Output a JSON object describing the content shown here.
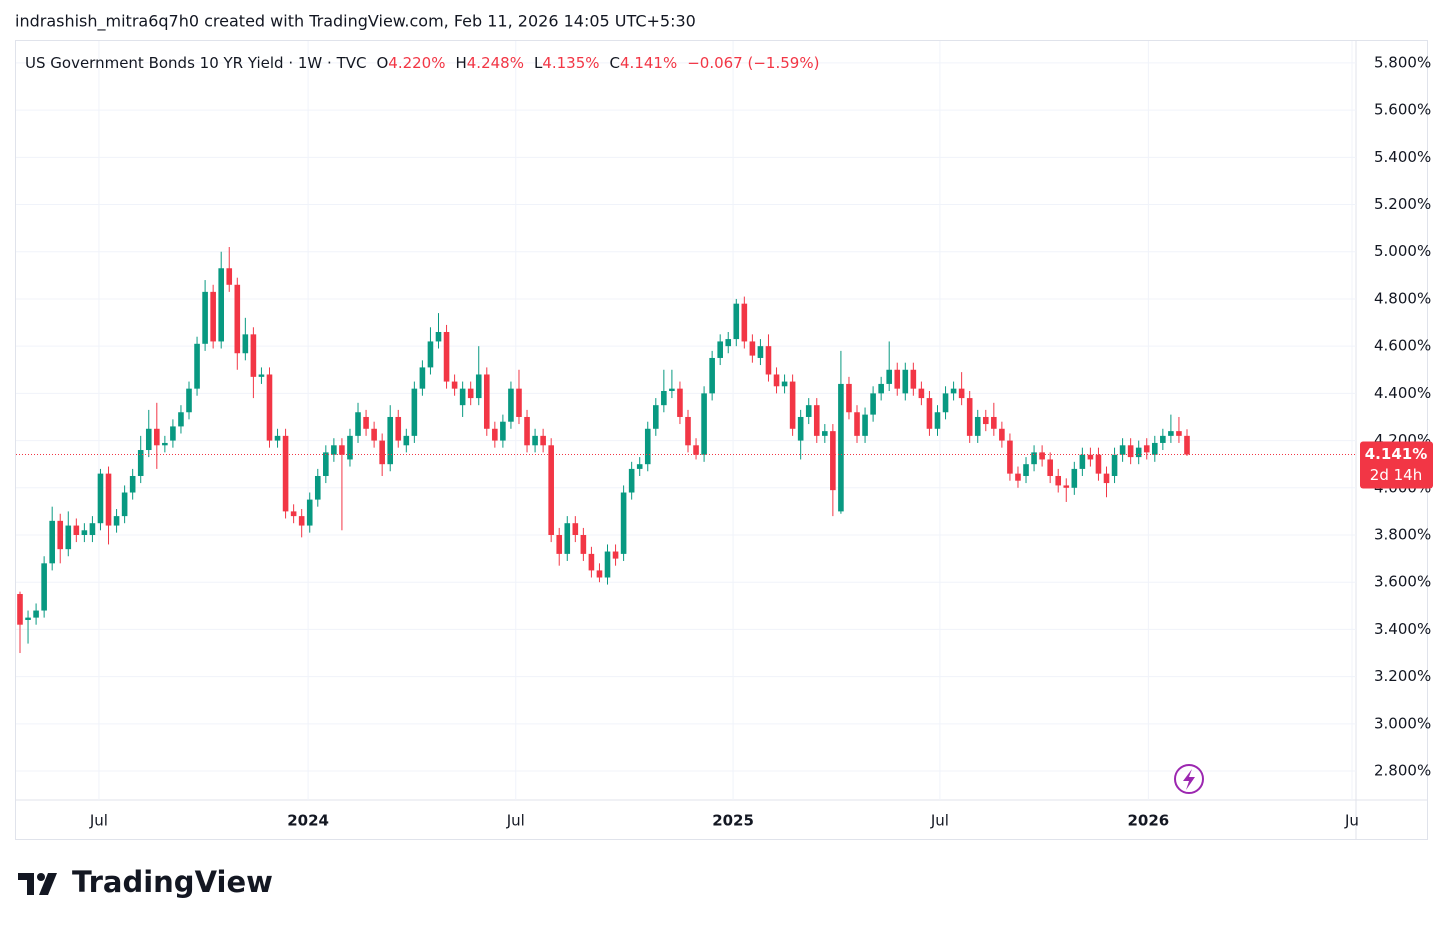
{
  "header": "indrashish_mitra6q7h0 created with TradingView.com, Feb 11, 2026 14:05 UTC+5:30",
  "brand": "TradingView",
  "chart_data": {
    "type": "candlestick",
    "legend": {
      "title": "US Government Bonds 10 YR Yield · 1W · TVC",
      "items": [
        {
          "key": "O",
          "value": "4.220%"
        },
        {
          "key": "H",
          "value": "4.248%"
        },
        {
          "key": "L",
          "value": "4.135%"
        },
        {
          "key": "C",
          "value": "4.141%"
        }
      ],
      "change": "−0.067 (−1.59%)"
    },
    "last_price": {
      "value": 4.141,
      "label": "4.141%"
    },
    "countdown": "2d 14h",
    "up_color": "#089981",
    "down_color": "#f23645",
    "grid": true,
    "xlim": [
      -0.62,
      166.0
    ],
    "xticks": [
      {
        "value": 9.81,
        "label": "Jul"
      },
      {
        "value": 35.8,
        "label": "2024"
      },
      {
        "value": 61.6,
        "label": "Jul"
      },
      {
        "value": 88.6,
        "label": "2025"
      },
      {
        "value": 114.3,
        "label": "Jul"
      },
      {
        "value": 140.2,
        "label": "2026"
      },
      {
        "value": 165.5,
        "label": "Ju"
      }
    ],
    "ylim": [
      2.635,
      5.897
    ],
    "yticks": [
      {
        "value": 2.8,
        "label": "2.800%"
      },
      {
        "value": 3.0,
        "label": "3.000%"
      },
      {
        "value": 3.2,
        "label": "3.200%"
      },
      {
        "value": 3.4,
        "label": "3.400%"
      },
      {
        "value": 3.6,
        "label": "3.600%"
      },
      {
        "value": 3.8,
        "label": "3.800%"
      },
      {
        "value": 4.0,
        "label": "4.000%"
      },
      {
        "value": 4.2,
        "label": "4.200%"
      },
      {
        "value": 4.4,
        "label": "4.400%"
      },
      {
        "value": 4.6,
        "label": "4.600%"
      },
      {
        "value": 4.8,
        "label": "4.800%"
      },
      {
        "value": 5.0,
        "label": "5.000%"
      },
      {
        "value": 5.2,
        "label": "5.200%"
      },
      {
        "value": 5.4,
        "label": "5.400%"
      },
      {
        "value": 5.6,
        "label": "5.600%"
      },
      {
        "value": 5.8,
        "label": "5.800%"
      }
    ],
    "open": [
      3.55,
      3.44,
      3.45,
      3.48,
      3.68,
      3.86,
      3.74,
      3.84,
      3.8,
      3.8,
      3.85,
      4.06,
      3.84,
      3.88,
      3.98,
      4.05,
      4.16,
      4.25,
      4.18,
      4.2,
      4.26,
      4.32,
      4.42,
      4.61,
      4.83,
      4.62,
      4.93,
      4.86,
      4.57,
      4.65,
      4.47,
      4.48,
      4.2,
      4.22,
      3.9,
      3.88,
      3.84,
      3.95,
      4.05,
      4.14,
      4.18,
      4.12,
      4.22,
      4.3,
      4.25,
      4.2,
      4.1,
      4.3,
      4.18,
      4.22,
      4.42,
      4.51,
      4.62,
      4.66,
      4.45,
      4.35,
      4.42,
      4.38,
      4.48,
      4.25,
      4.2,
      4.28,
      4.42,
      4.3,
      4.18,
      4.22,
      4.18,
      3.8,
      3.72,
      3.85,
      3.8,
      3.72,
      3.65,
      3.62,
      3.73,
      3.72,
      3.98,
      4.08,
      4.1,
      4.25,
      4.35,
      4.41,
      4.42,
      4.3,
      4.18,
      4.14,
      4.4,
      4.55,
      4.6,
      4.63,
      4.78,
      4.62,
      4.55,
      4.6,
      4.48,
      4.43,
      4.45,
      4.2,
      4.3,
      4.35,
      4.22,
      4.24,
      3.9,
      4.44,
      4.32,
      4.22,
      4.31,
      4.4,
      4.44,
      4.5,
      4.4,
      4.5,
      4.42,
      4.38,
      4.25,
      4.32,
      4.4,
      4.42,
      4.38,
      4.22,
      4.3,
      4.3,
      4.25,
      4.2,
      4.06,
      4.05,
      4.1,
      4.15,
      4.12,
      4.05,
      4.01,
      4.0,
      4.08,
      4.14,
      4.14,
      4.06,
      4.05,
      4.14,
      4.18,
      4.13,
      4.18,
      4.14,
      4.19,
      4.22,
      4.24,
      4.22
    ],
    "high": [
      3.56,
      3.48,
      3.51,
      3.71,
      3.92,
      3.89,
      3.9,
      3.87,
      3.85,
      3.88,
      4.08,
      4.09,
      3.91,
      4.01,
      4.08,
      4.22,
      4.33,
      4.36,
      4.22,
      4.29,
      4.35,
      4.45,
      4.64,
      4.88,
      4.86,
      5.0,
      5.02,
      4.89,
      4.72,
      4.68,
      4.51,
      4.51,
      4.25,
      4.25,
      3.93,
      3.91,
      3.98,
      4.08,
      4.18,
      4.21,
      4.21,
      4.25,
      4.36,
      4.33,
      4.28,
      4.23,
      4.35,
      4.33,
      4.25,
      4.45,
      4.54,
      4.68,
      4.74,
      4.69,
      4.48,
      4.45,
      4.45,
      4.6,
      4.51,
      4.28,
      4.31,
      4.45,
      4.5,
      4.33,
      4.25,
      4.25,
      4.21,
      3.83,
      3.88,
      3.88,
      3.83,
      3.75,
      3.68,
      3.76,
      3.76,
      4.01,
      4.11,
      4.13,
      4.28,
      4.38,
      4.5,
      4.5,
      4.45,
      4.33,
      4.21,
      4.43,
      4.58,
      4.65,
      4.66,
      4.8,
      4.81,
      4.65,
      4.63,
      4.65,
      4.51,
      4.48,
      4.48,
      4.33,
      4.38,
      4.38,
      4.27,
      4.27,
      4.58,
      4.47,
      4.35,
      4.34,
      4.43,
      4.47,
      4.62,
      4.53,
      4.53,
      4.53,
      4.45,
      4.41,
      4.35,
      4.43,
      4.45,
      4.49,
      4.41,
      4.33,
      4.33,
      4.36,
      4.28,
      4.23,
      4.09,
      4.13,
      4.18,
      4.18,
      4.15,
      4.08,
      4.04,
      4.11,
      4.17,
      4.17,
      4.17,
      4.09,
      4.17,
      4.21,
      4.21,
      4.2,
      4.21,
      4.22,
      4.25,
      4.31,
      4.3,
      4.248
    ],
    "low": [
      3.3,
      3.34,
      3.42,
      3.45,
      3.65,
      3.68,
      3.71,
      3.77,
      3.77,
      3.77,
      3.82,
      3.76,
      3.81,
      3.85,
      3.95,
      4.02,
      4.13,
      4.08,
      4.15,
      4.17,
      4.23,
      4.29,
      4.39,
      4.58,
      4.59,
      4.59,
      4.83,
      4.5,
      4.54,
      4.38,
      4.44,
      4.17,
      4.17,
      3.87,
      3.85,
      3.79,
      3.81,
      3.92,
      4.02,
      4.11,
      3.82,
      4.09,
      4.19,
      4.22,
      4.17,
      4.05,
      4.07,
      4.17,
      4.15,
      4.19,
      4.39,
      4.48,
      4.59,
      4.42,
      4.39,
      4.3,
      4.35,
      4.35,
      4.22,
      4.17,
      4.17,
      4.25,
      4.27,
      4.15,
      4.15,
      4.15,
      3.77,
      3.67,
      3.69,
      3.77,
      3.69,
      3.62,
      3.6,
      3.59,
      3.67,
      3.69,
      3.95,
      4.05,
      4.07,
      4.22,
      4.32,
      4.38,
      4.27,
      4.15,
      4.12,
      4.11,
      4.37,
      4.52,
      4.57,
      4.6,
      4.59,
      4.53,
      4.52,
      4.45,
      4.4,
      4.4,
      4.22,
      4.12,
      4.27,
      4.19,
      4.19,
      3.88,
      3.89,
      4.29,
      4.19,
      4.19,
      4.28,
      4.37,
      4.41,
      4.39,
      4.37,
      4.39,
      4.35,
      4.22,
      4.22,
      4.29,
      4.37,
      4.35,
      4.19,
      4.19,
      4.24,
      4.22,
      4.17,
      4.03,
      4.0,
      4.02,
      4.07,
      4.09,
      4.02,
      3.98,
      3.94,
      3.97,
      4.05,
      4.09,
      4.03,
      3.96,
      4.02,
      4.11,
      4.1,
      4.1,
      4.12,
      4.11,
      4.16,
      4.19,
      4.19,
      4.135
    ],
    "close": [
      3.42,
      3.45,
      3.48,
      3.68,
      3.86,
      3.74,
      3.84,
      3.8,
      3.82,
      3.85,
      4.06,
      3.84,
      3.88,
      3.98,
      4.05,
      4.16,
      4.25,
      4.18,
      4.19,
      4.26,
      4.32,
      4.42,
      4.61,
      4.83,
      4.62,
      4.93,
      4.86,
      4.57,
      4.65,
      4.47,
      4.48,
      4.2,
      4.22,
      3.9,
      3.88,
      3.84,
      3.95,
      4.05,
      4.15,
      4.18,
      4.14,
      4.22,
      4.32,
      4.25,
      4.2,
      4.1,
      4.3,
      4.2,
      4.22,
      4.42,
      4.51,
      4.62,
      4.66,
      4.45,
      4.42,
      4.42,
      4.38,
      4.48,
      4.25,
      4.2,
      4.28,
      4.42,
      4.3,
      4.18,
      4.22,
      4.18,
      3.8,
      3.72,
      3.85,
      3.8,
      3.72,
      3.65,
      3.62,
      3.73,
      3.7,
      3.98,
      4.08,
      4.1,
      4.25,
      4.35,
      4.41,
      4.42,
      4.3,
      4.18,
      4.14,
      4.4,
      4.55,
      4.62,
      4.63,
      4.78,
      4.62,
      4.56,
      4.6,
      4.48,
      4.43,
      4.45,
      4.25,
      4.3,
      4.35,
      4.22,
      4.24,
      3.99,
      4.44,
      4.32,
      4.22,
      4.31,
      4.4,
      4.44,
      4.5,
      4.42,
      4.5,
      4.42,
      4.38,
      4.25,
      4.32,
      4.4,
      4.42,
      4.38,
      4.22,
      4.3,
      4.27,
      4.25,
      4.2,
      4.06,
      4.03,
      4.1,
      4.15,
      4.12,
      4.05,
      4.01,
      4.0,
      4.08,
      4.14,
      4.12,
      4.06,
      4.02,
      4.14,
      4.18,
      4.13,
      4.17,
      4.15,
      4.19,
      4.22,
      4.24,
      4.22,
      4.141
    ]
  }
}
